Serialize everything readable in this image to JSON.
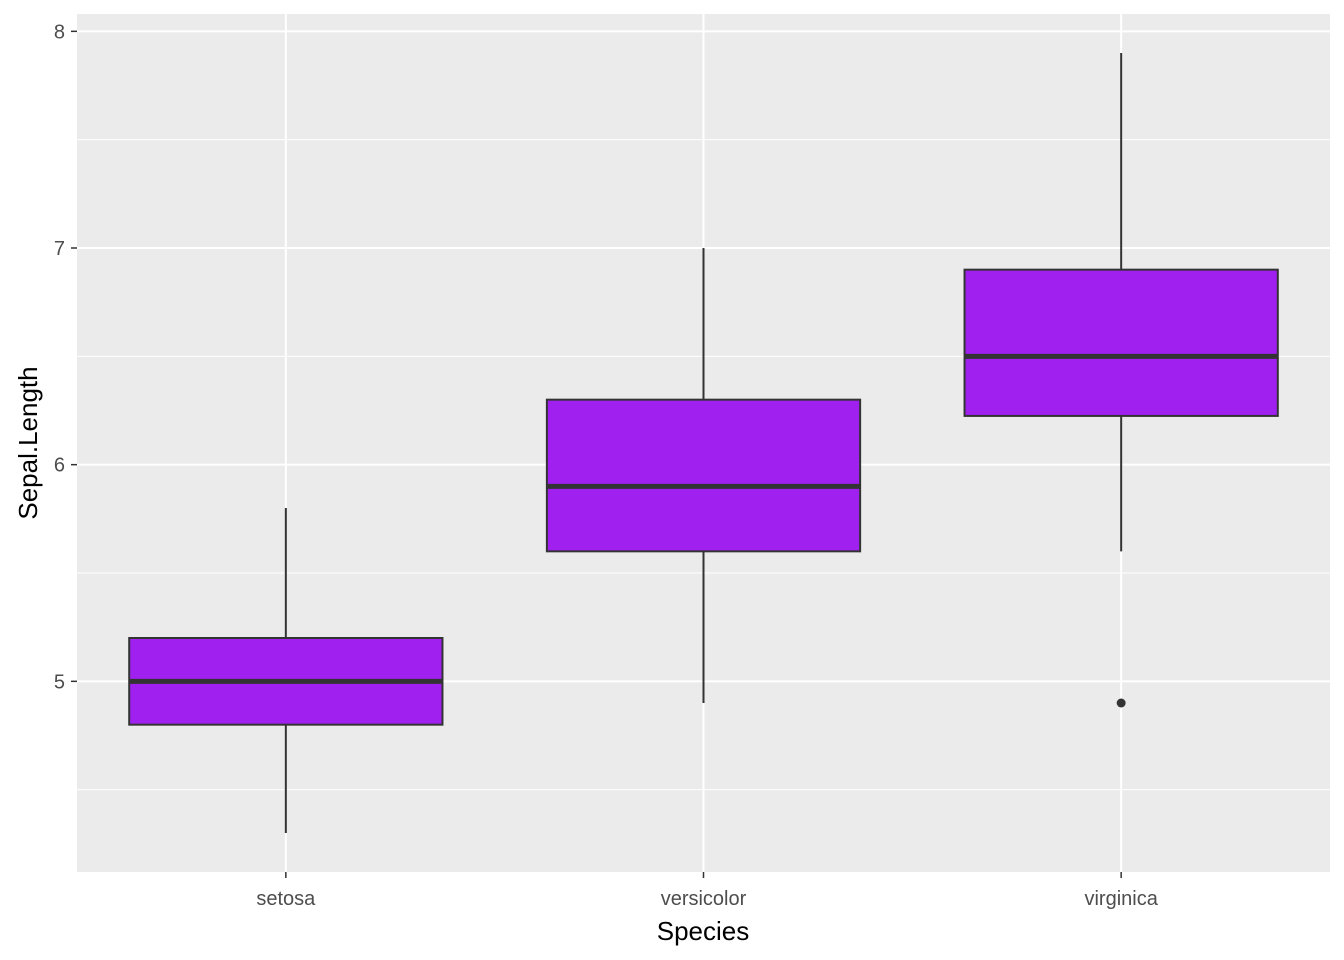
{
  "chart_data": {
    "type": "boxplot",
    "xlabel": "Species",
    "ylabel": "Sepal.Length",
    "categories": [
      "setosa",
      "versicolor",
      "virginica"
    ],
    "boxes": [
      {
        "category": "setosa",
        "whisker_low": 4.3,
        "q1": 4.8,
        "median": 5.0,
        "q3": 5.2,
        "whisker_high": 5.8,
        "outliers": []
      },
      {
        "category": "versicolor",
        "whisker_low": 4.9,
        "q1": 5.6,
        "median": 5.9,
        "q3": 6.3,
        "whisker_high": 7.0,
        "outliers": []
      },
      {
        "category": "virginica",
        "whisker_low": 5.6,
        "q1": 6.225,
        "median": 6.5,
        "q3": 6.9,
        "whisker_high": 7.9,
        "outliers": [
          4.9
        ]
      }
    ],
    "ylim": [
      4.12,
      8.08
    ],
    "yticks": [
      5,
      6,
      7,
      8
    ],
    "grid": true,
    "colors": {
      "fill": "#A020F0",
      "line": "#333333",
      "panel": "#EBEBEB",
      "grid": "#FFFFFF"
    }
  }
}
